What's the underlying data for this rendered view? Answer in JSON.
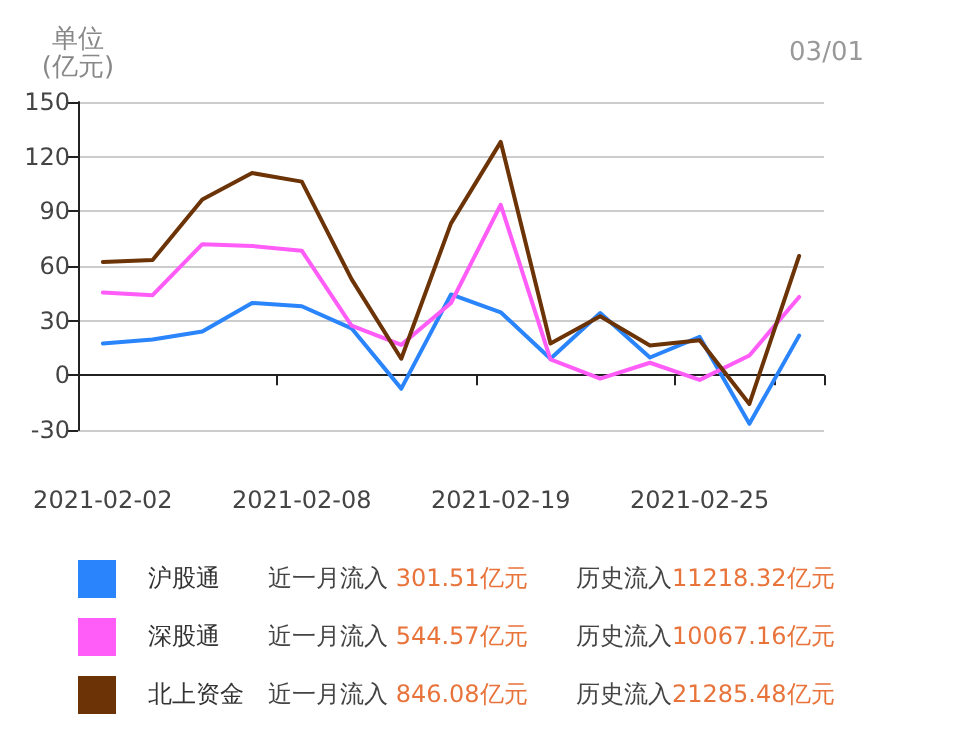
{
  "chart_data": {
    "type": "line",
    "ylabel": "单位\n(亿元)",
    "categories": [
      "2021-02-02",
      null,
      null,
      null,
      "2021-02-08",
      null,
      null,
      null,
      "2021-02-19",
      null,
      null,
      null,
      "2021-02-25",
      null,
      null
    ],
    "series": [
      {
        "name": "沪股通",
        "color": "#2a84fb",
        "values": [
          17.5,
          19.7,
          24,
          39.7,
          37.9,
          25.8,
          -7.3,
          44.4,
          34.6,
          9.1,
          34.2,
          9.8,
          21.1,
          -26.6,
          21.8
        ]
      },
      {
        "name": "深股通",
        "color": "#ff5cf8",
        "values": [
          45.5,
          44,
          72,
          71,
          68.4,
          27.3,
          16.7,
          39.7,
          93.6,
          8.7,
          -1.8,
          6.9,
          -2.5,
          10.9,
          43
        ]
      },
      {
        "name": "北上资金",
        "color": "#6b3306",
        "values": [
          62.2,
          63.3,
          96.5,
          111,
          106.3,
          52.8,
          9.1,
          83.4,
          128.1,
          17.5,
          32.4,
          16.4,
          19.3,
          -15.7,
          65.5
        ]
      }
    ],
    "ylim": [
      -30,
      150
    ],
    "yticks": [
      -30,
      0,
      30,
      60,
      90,
      120,
      150
    ],
    "grid": "y",
    "legend": "bottom",
    "marker": "none",
    "line_style": "solid",
    "annotations": [
      "03/01",
      "近一月流入 301.51亿元",
      "历史流入11218.32亿元",
      "近一月流入 544.57亿元",
      "历史流入10067.16亿元",
      "近一月流入 846.08亿元",
      "历史流入21285.48亿元"
    ]
  }
}
